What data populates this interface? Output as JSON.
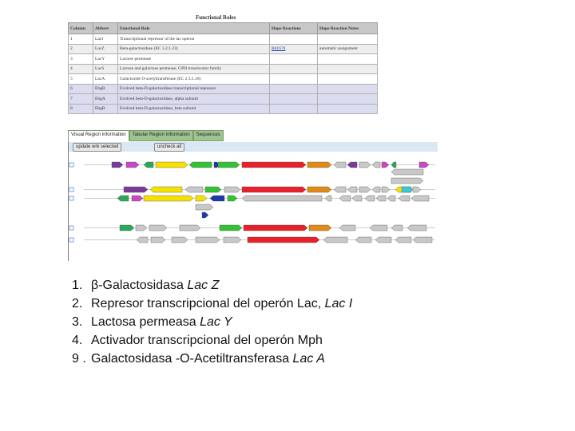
{
  "functional_roles": {
    "title": "Functional Roles",
    "columns": [
      "Column",
      "Abbrev",
      "Functional Role",
      "Hope Reactions",
      "Hope Reaction Notes"
    ],
    "rows": [
      {
        "column": "1",
        "abbrev": "LacI",
        "role": "Transcriptional repressor of the lac operon",
        "reactions": "",
        "notes": ""
      },
      {
        "column": "2",
        "abbrev": "LacZ",
        "role": "Beta-galactosidase (EC 3.2.1.23)",
        "reactions": "R01678",
        "notes": "automatic assignment"
      },
      {
        "column": "3",
        "abbrev": "LacY",
        "role": "Lactose permease",
        "reactions": "",
        "notes": ""
      },
      {
        "column": "4",
        "abbrev": "LacS",
        "role": "Lactose and galactose permease, GPH translocator family",
        "reactions": "",
        "notes": ""
      },
      {
        "column": "5",
        "abbrev": "LacA",
        "role": "Galactoside O-acetyltransferase (EC 2.3.1.18)",
        "reactions": "",
        "notes": ""
      },
      {
        "column": "6",
        "abbrev": "EbgR",
        "role": "Evolved beta-D-galactosidase transcriptional repressor",
        "reactions": "",
        "notes": ""
      },
      {
        "column": "7",
        "abbrev": "EbgA",
        "role": "Evolved beta-D-galactosidase, alpha subunit",
        "reactions": "",
        "notes": ""
      },
      {
        "column": "8",
        "abbrev": "EbgB",
        "role": "Evolved beta-D-galactosidase, beta subunit",
        "reactions": "",
        "notes": ""
      }
    ]
  },
  "region_panel": {
    "tabs": [
      "Visual Region Information",
      "Tabular Region Information",
      "Sequences"
    ],
    "active_tab": 0,
    "buttons": {
      "update": "update wrk selected",
      "uncheck": "uncheck all"
    }
  },
  "legend": [
    {
      "num": "1.",
      "text": "β-Galactosidasa ",
      "italic": "Lac Z"
    },
    {
      "num": "2.",
      "text": "Represor transcripcional del operón Lac, ",
      "italic": "Lac I"
    },
    {
      "num": "3.",
      "text": "Lactosa permeasa ",
      "italic": "Lac Y"
    },
    {
      "num": "4.",
      "text": "Activador transcripcional del operón Mph",
      "italic": ""
    },
    {
      "num": "9 .",
      "text": "Galactosidasa -O-Acetiltransferasa ",
      "italic": "Lac A"
    }
  ],
  "colors": {
    "gene1": "#e8202a",
    "gene2": "#33c233",
    "gene3": "#e08a18",
    "gene4": "#1a3aa8",
    "gene5": "#f5e000",
    "gene6": "#2aa85a",
    "gene7": "#c848c8",
    "gene8": "#7a3a9a",
    "other": "#c8c8c8",
    "cyan": "#38c8d8",
    "tab_bg": "#9fc48f",
    "toolbar_bg": "#d9e8f5"
  }
}
